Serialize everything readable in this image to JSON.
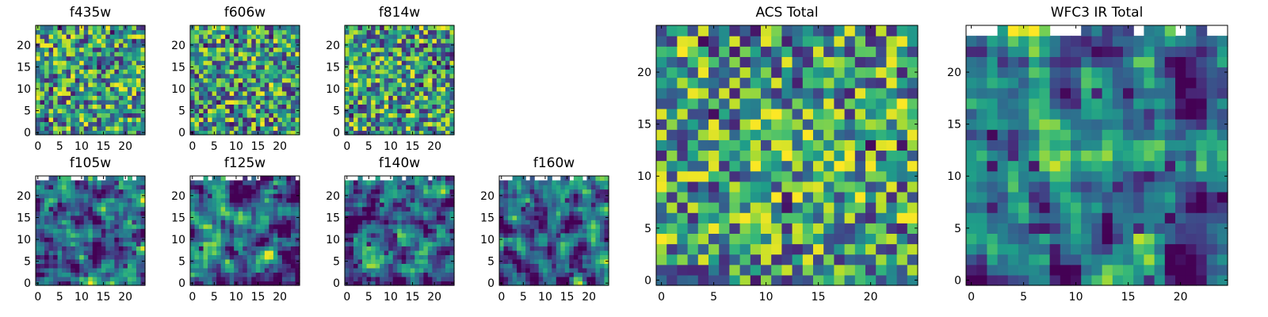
{
  "chart_data": [
    {
      "type": "heatmap",
      "title": "f435w",
      "grid": "25x25 pixel cutout",
      "colormap": "viridis",
      "xlim": [
        0,
        24
      ],
      "ylim": [
        0,
        24
      ],
      "xticks": [
        0,
        5,
        10,
        15,
        20
      ],
      "yticks": [
        0,
        5,
        10,
        15,
        20
      ],
      "masked_top": false,
      "texture": "fine random noise",
      "seed": 11
    },
    {
      "type": "heatmap",
      "title": "f606w",
      "grid": "25x25 pixel cutout",
      "colormap": "viridis",
      "xlim": [
        0,
        24
      ],
      "ylim": [
        0,
        24
      ],
      "xticks": [
        0,
        5,
        10,
        15,
        20
      ],
      "yticks": [
        0,
        5,
        10,
        15,
        20
      ],
      "masked_top": false,
      "texture": "fine random noise",
      "seed": 23
    },
    {
      "type": "heatmap",
      "title": "f814w",
      "grid": "25x25 pixel cutout",
      "colormap": "viridis",
      "xlim": [
        0,
        24
      ],
      "ylim": [
        0,
        24
      ],
      "xticks": [
        0,
        5,
        10,
        15,
        20
      ],
      "yticks": [
        0,
        5,
        10,
        15,
        20
      ],
      "masked_top": false,
      "texture": "fine random noise",
      "seed": 37
    },
    {
      "type": "heatmap",
      "title": "f105w",
      "grid": "25x25 pixel cutout",
      "colormap": "viridis",
      "xlim": [
        0,
        24
      ],
      "ylim": [
        0,
        24
      ],
      "xticks": [
        0,
        5,
        10,
        15,
        20
      ],
      "yticks": [
        0,
        5,
        10,
        15,
        20
      ],
      "masked_top": true,
      "texture": "smooth blotchy",
      "seed": 41
    },
    {
      "type": "heatmap",
      "title": "f125w",
      "grid": "25x25 pixel cutout",
      "colormap": "viridis",
      "xlim": [
        0,
        24
      ],
      "ylim": [
        0,
        24
      ],
      "xticks": [
        0,
        5,
        10,
        15,
        20
      ],
      "yticks": [
        0,
        5,
        10,
        15,
        20
      ],
      "masked_top": true,
      "texture": "smooth blotchy",
      "seed": 53
    },
    {
      "type": "heatmap",
      "title": "f140w",
      "grid": "25x25 pixel cutout",
      "colormap": "viridis",
      "xlim": [
        0,
        24
      ],
      "ylim": [
        0,
        24
      ],
      "xticks": [
        0,
        5,
        10,
        15,
        20
      ],
      "yticks": [
        0,
        5,
        10,
        15,
        20
      ],
      "masked_top": true,
      "texture": "smooth blotchy",
      "seed": 67
    },
    {
      "type": "heatmap",
      "title": "f160w",
      "grid": "25x25 pixel cutout",
      "colormap": "viridis",
      "xlim": [
        0,
        24
      ],
      "ylim": [
        0,
        24
      ],
      "xticks": [
        0,
        5,
        10,
        15,
        20
      ],
      "yticks": [
        0,
        5,
        10,
        15,
        20
      ],
      "masked_top": true,
      "texture": "smooth blotchy",
      "seed": 79
    },
    {
      "type": "heatmap",
      "title": "ACS Total",
      "grid": "25x25 pixel cutout",
      "colormap": "viridis",
      "xlim": [
        0,
        24
      ],
      "ylim": [
        0,
        24
      ],
      "xticks": [
        0,
        5,
        10,
        15,
        20
      ],
      "yticks": [
        0,
        5,
        10,
        15,
        20
      ],
      "masked_top": false,
      "texture": "noise with faint central source",
      "seed": 97
    },
    {
      "type": "heatmap",
      "title": "WFC3 IR Total",
      "grid": "25x25 pixel cutout",
      "colormap": "viridis",
      "xlim": [
        0,
        24
      ],
      "ylim": [
        0,
        24
      ],
      "xticks": [
        0,
        5,
        10,
        15,
        20
      ],
      "yticks": [
        0,
        5,
        10,
        15,
        20
      ],
      "masked_top": true,
      "texture": "smooth with bright central source",
      "seed": 131
    }
  ]
}
